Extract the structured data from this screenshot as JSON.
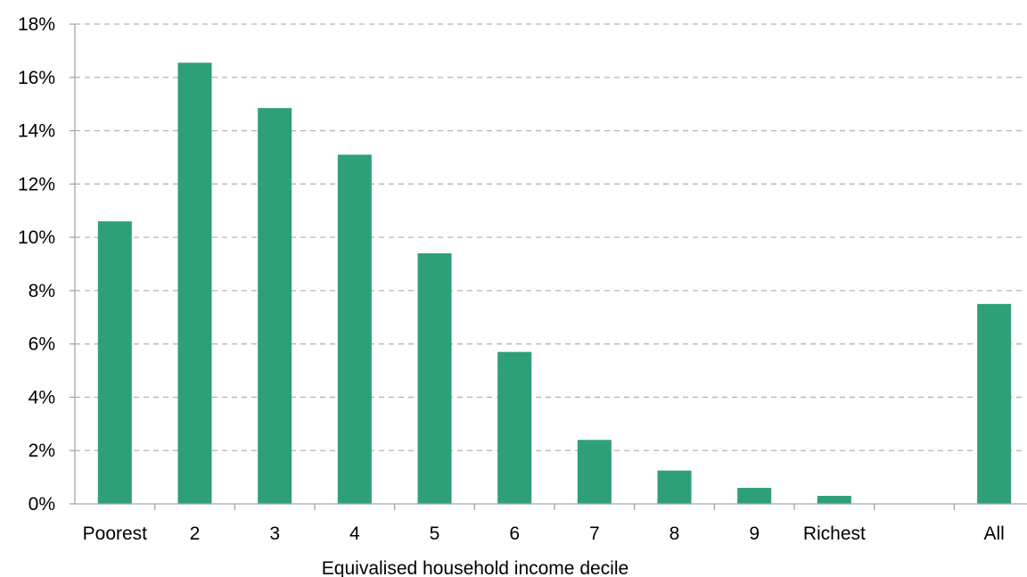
{
  "chart_data": {
    "type": "bar",
    "title": "",
    "xlabel": "Equivalised household income decile",
    "ylabel": "",
    "categories": [
      "Poorest",
      "2",
      "3",
      "4",
      "5",
      "6",
      "7",
      "8",
      "9",
      "Richest",
      "",
      "All"
    ],
    "values": [
      10.6,
      16.55,
      14.85,
      13.1,
      9.4,
      5.7,
      2.4,
      1.25,
      0.6,
      0.3,
      null,
      7.5
    ],
    "ylim": [
      0,
      18
    ],
    "yticks": [
      0,
      2,
      4,
      6,
      8,
      10,
      12,
      14,
      16,
      18
    ],
    "ytick_suffix": "%",
    "grid": true,
    "grid_style": "dashed",
    "legend": "none",
    "bar_color": "#2ea077",
    "grid_color": "#b5b5b5",
    "axis_color": "#a6a6a6"
  }
}
